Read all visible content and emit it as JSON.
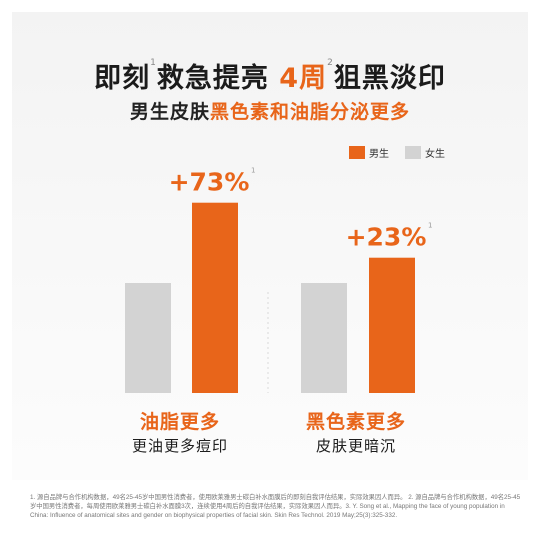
{
  "header": {
    "title_part1": "即刻",
    "title_sup1": "1",
    "title_part2": "救急提亮",
    "title_accent": "4周",
    "title_sup2": "2",
    "title_part3": "狙黑淡印",
    "subtitle_plain": "男生皮肤",
    "subtitle_accent": "黑色素和油脂分泌更多"
  },
  "colors": {
    "accent": "#e8651a",
    "male": "#e8651a",
    "female": "#d3d3d3",
    "text": "#1b1b1b"
  },
  "chart_data": {
    "type": "bar",
    "categories": [
      "油脂更多",
      "黑色素更多"
    ],
    "category_subtitles": [
      "更油更多痘印",
      "皮肤更暗沉"
    ],
    "series": [
      {
        "name": "男生",
        "values": [
          1.73,
          1.23
        ]
      },
      {
        "name": "女生",
        "values": [
          1.0,
          1.0
        ]
      }
    ],
    "data_labels": [
      "+73%",
      "+23%"
    ],
    "data_label_sup": "1",
    "legend": {
      "placement": "top-right",
      "items": [
        "男生",
        "女生"
      ]
    },
    "grid": false,
    "ylim": [
      0,
      2.2
    ]
  },
  "footnote": "1. 源自品牌与合作机构数据，49名25-45岁中国男性消费者，使用欧莱雅男士碳白补水面膜后的即刻自我评估结果，实际效果因人而异。 2. 源自品牌与合作机构数据，49名25-45岁中国男性消费者，每周使用欧莱雅男士碳白补水面膜3次，连续使用4周后的自我评估结果，实际效果因人而异。3. Y. Song et al., Mapping the face of young population in China: Influence of anatomical sites and gender on biophysical properties of facial skin. Skin Res Technol. 2019 May;25(3):325-332."
}
